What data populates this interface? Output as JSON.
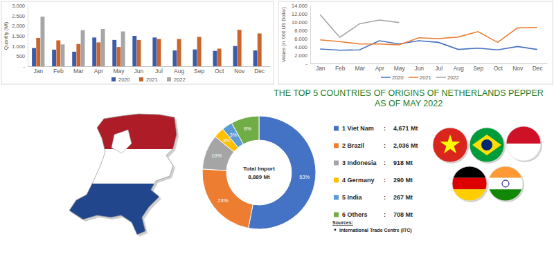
{
  "chart_data": [
    {
      "type": "bar",
      "y_label": "Quantity (Mt)",
      "categories": [
        "Jan",
        "Feb",
        "Mar",
        "Apr",
        "May",
        "Jun",
        "Jul",
        "Aug",
        "Sep",
        "Oct",
        "Nov",
        "Dec"
      ],
      "series": [
        {
          "name": "2020",
          "color": "#3b5ca8",
          "values": [
            900,
            820,
            720,
            1420,
            1300,
            1500,
            1420,
            780,
            830,
            760,
            1000,
            780
          ]
        },
        {
          "name": "2021",
          "color": "#c9642d",
          "values": [
            1400,
            1280,
            1100,
            1180,
            950,
            1300,
            1350,
            1350,
            1450,
            870,
            1800,
            1620
          ]
        },
        {
          "name": "2022",
          "color": "#a6a6a6",
          "values": [
            2450,
            1080,
            1780,
            1840,
            1720,
            null,
            null,
            null,
            null,
            null,
            null,
            null
          ]
        }
      ],
      "ylim": [
        0,
        3000
      ],
      "yticks": [
        {
          "value": 0,
          "label": "-"
        },
        500,
        {
          "value": 1000,
          "label": "1.000"
        },
        {
          "value": 1500,
          "label": "1.500"
        },
        {
          "value": 2000,
          "label": "2.000"
        },
        {
          "value": 2500,
          "label": "2.500"
        },
        {
          "value": 3000,
          "label": "3.000"
        }
      ],
      "grid": false,
      "legend": "bottom"
    },
    {
      "type": "line",
      "y_label": "Values (in '000 US Dollar)",
      "categories": [
        "Jan",
        "Feb",
        "Mar",
        "Apr",
        "May",
        "Jun",
        "Jul",
        "Aug",
        "Sep",
        "Oct",
        "Nov",
        "Dec"
      ],
      "series": [
        {
          "name": "2020",
          "color": "#4472c4",
          "values": [
            3500,
            3200,
            3300,
            5500,
            4700,
            5500,
            5100,
            3400,
            3700,
            3300,
            4100,
            3400
          ]
        },
        {
          "name": "2021",
          "color": "#ed7d31",
          "values": [
            5700,
            5300,
            4700,
            4700,
            4500,
            6200,
            6000,
            6400,
            7700,
            5100,
            8600,
            8700
          ]
        },
        {
          "name": "2022",
          "color": "#a5a5a5",
          "values": [
            11800,
            6300,
            9600,
            10500,
            9900,
            null,
            null,
            null,
            null,
            null,
            null,
            null
          ]
        }
      ],
      "ylim": [
        0,
        14000
      ],
      "yticks": [
        {
          "value": 0,
          "label": "-"
        },
        {
          "value": 2000,
          "label": "2.000"
        },
        {
          "value": 4000,
          "label": "4.000"
        },
        {
          "value": 6000,
          "label": "6.000"
        },
        {
          "value": 8000,
          "label": "8.000"
        },
        {
          "value": 10000,
          "label": "10.000"
        },
        {
          "value": 12000,
          "label": "12.000"
        },
        {
          "value": 14000,
          "label": "14.000"
        }
      ],
      "grid": false,
      "legend": "bottom"
    },
    {
      "type": "pie",
      "title": "THE TOP 5 COUNTRIES OF ORIGINS OF NETHERLANDS PEPPER",
      "subtitle": "AS OF MAY 2022",
      "categories": [
        "1 Viet Nam",
        "2 Brazil",
        "3 Indonesia",
        "4 Germany",
        "5 India",
        "6 Others"
      ],
      "values": [
        53,
        23,
        10,
        3,
        3,
        8
      ],
      "value_labels": [
        "53%",
        "23%",
        "10%",
        "3%",
        "3%",
        "8%"
      ],
      "colors": [
        "#4472c4",
        "#ed7d31",
        "#a5a5a5",
        "#ffc000",
        "#5b9bd5",
        "#70ad47"
      ],
      "data_labels": true,
      "center_title": "Total Import",
      "total": 8889,
      "total_label": "8,889 Mt",
      "separator": ":",
      "quantities": [
        4671,
        2036,
        918,
        290,
        267,
        708
      ],
      "quantity_labels": [
        "4,671 Mt",
        "2,036 Mt",
        "918 Mt",
        "290 Mt",
        "267 Mt",
        "708 Mt"
      ]
    }
  ],
  "sources": {
    "title": "Sources:",
    "items": [
      "International Trade Centre (ITC)"
    ]
  }
}
